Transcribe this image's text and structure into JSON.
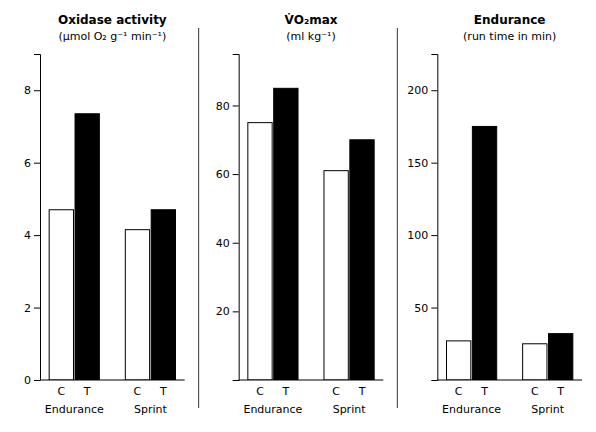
{
  "chart_data": [
    {
      "type": "bar",
      "title": "Oxidase activity",
      "subtitle": "(μmol O₂ g⁻¹ min⁻¹)",
      "categories": [
        "Endurance",
        "Sprint"
      ],
      "series": [
        {
          "name": "C",
          "color": "#ffffff",
          "values": [
            4.7,
            4.15
          ]
        },
        {
          "name": "T",
          "color": "#000000",
          "values": [
            7.35,
            4.7
          ]
        }
      ],
      "ylim": [
        0,
        9
      ],
      "yticks": [
        0,
        2,
        4,
        6,
        8
      ]
    },
    {
      "type": "bar",
      "title": "V̇O₂max",
      "subtitle": "(ml kg⁻¹)",
      "categories": [
        "Endurance",
        "Sprint"
      ],
      "series": [
        {
          "name": "C",
          "color": "#ffffff",
          "values": [
            75,
            61
          ]
        },
        {
          "name": "T",
          "color": "#000000",
          "values": [
            85,
            70
          ]
        }
      ],
      "ylim": [
        0,
        95
      ],
      "yticks": [
        20,
        40,
        60,
        80
      ]
    },
    {
      "type": "bar",
      "title": "Endurance",
      "subtitle": "(run time in min)",
      "categories": [
        "Endurance",
        "Sprint"
      ],
      "series": [
        {
          "name": "C",
          "color": "#ffffff",
          "values": [
            27,
            25
          ]
        },
        {
          "name": "T",
          "color": "#000000",
          "values": [
            175,
            32
          ]
        }
      ],
      "ylim": [
        0,
        225
      ],
      "yticks": [
        50,
        100,
        150,
        200
      ]
    }
  ]
}
